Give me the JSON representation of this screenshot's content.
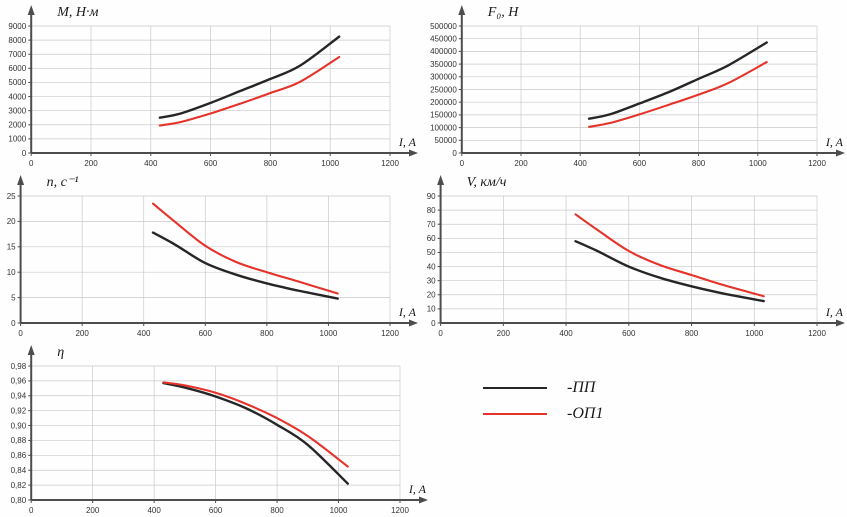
{
  "page": {
    "background": "#fefefe"
  },
  "legend": {
    "items": [
      {
        "name": "ПП",
        "label": "-ПП",
        "color": "#262626"
      },
      {
        "name": "ОП1",
        "label": "-ОП1",
        "color": "#e6332a"
      }
    ]
  },
  "axis": {
    "color": "#4d4d4d",
    "grid_color": "#c9c9c9",
    "tick_color": "#333333"
  },
  "chart_data": [
    {
      "id": "torque",
      "type": "line",
      "title": "M, Н·м",
      "xlabel": "I, A",
      "x": [
        430,
        500,
        600,
        700,
        800,
        900,
        1030
      ],
      "series": [
        {
          "name": "ПП",
          "color": "#262626",
          "values": [
            2500,
            2800,
            3550,
            4400,
            5250,
            6200,
            8250
          ]
        },
        {
          "name": "ОП1",
          "color": "#e6332a",
          "values": [
            1950,
            2200,
            2800,
            3500,
            4250,
            5050,
            6800
          ]
        }
      ],
      "xlim": [
        0,
        1200
      ],
      "xstep": 200,
      "ylim": [
        0,
        9000
      ],
      "ystep": 1000,
      "y_decimals": 0,
      "decimal_comma": false,
      "grid": true
    },
    {
      "id": "force",
      "type": "line",
      "title": "F₀, Н",
      "xlabel": "I, A",
      "x": [
        430,
        500,
        600,
        700,
        800,
        900,
        1030
      ],
      "series": [
        {
          "name": "ПП",
          "color": "#262626",
          "values": [
            135000,
            152000,
            195000,
            240000,
            292000,
            345000,
            435000
          ]
        },
        {
          "name": "ОП1",
          "color": "#e6332a",
          "values": [
            103000,
            118000,
            152000,
            190000,
            230000,
            275000,
            358000
          ]
        }
      ],
      "xlim": [
        0,
        1200
      ],
      "xstep": 200,
      "ylim": [
        0,
        500000
      ],
      "ystep": 50000,
      "y_decimals": 0,
      "decimal_comma": false,
      "grid": true
    },
    {
      "id": "rotation-speed",
      "type": "line",
      "title": "n, c⁻¹",
      "xlabel": "I, A",
      "x": [
        430,
        500,
        600,
        700,
        800,
        900,
        1030
      ],
      "series": [
        {
          "name": "ПП",
          "color": "#262626",
          "values": [
            17.8,
            15.5,
            11.8,
            9.5,
            7.8,
            6.4,
            4.8
          ]
        },
        {
          "name": "ОП1",
          "color": "#e6332a",
          "values": [
            23.5,
            20.0,
            15.2,
            12.0,
            10.0,
            8.2,
            5.8
          ]
        }
      ],
      "xlim": [
        0,
        1200
      ],
      "xstep": 200,
      "ylim": [
        0,
        25
      ],
      "ystep": 5,
      "y_decimals": 0,
      "decimal_comma": false,
      "grid": true
    },
    {
      "id": "velocity",
      "type": "line",
      "title": "V, км/ч",
      "xlabel": "I, A",
      "x": [
        430,
        500,
        600,
        700,
        800,
        900,
        1030
      ],
      "series": [
        {
          "name": "ПП",
          "color": "#262626",
          "values": [
            58,
            51,
            40,
            32,
            26,
            21,
            15.5
          ]
        },
        {
          "name": "ОП1",
          "color": "#e6332a",
          "values": [
            77,
            66,
            51,
            41,
            34,
            27,
            19
          ]
        }
      ],
      "xlim": [
        0,
        1200
      ],
      "xstep": 200,
      "ylim": [
        0,
        90
      ],
      "ystep": 10,
      "y_decimals": 0,
      "decimal_comma": false,
      "grid": true
    },
    {
      "id": "efficiency",
      "type": "line",
      "title": "η",
      "xlabel": "I, A",
      "x": [
        430,
        500,
        600,
        700,
        800,
        900,
        1030
      ],
      "series": [
        {
          "name": "ПП",
          "color": "#262626",
          "values": [
            0.957,
            0.951,
            0.939,
            0.923,
            0.901,
            0.874,
            0.822
          ]
        },
        {
          "name": "ОП1",
          "color": "#e6332a",
          "values": [
            0.958,
            0.954,
            0.944,
            0.929,
            0.91,
            0.886,
            0.845
          ]
        }
      ],
      "xlim": [
        0,
        1200
      ],
      "xstep": 200,
      "ylim": [
        0.8,
        0.98
      ],
      "ystep": 0.02,
      "y_decimals": 2,
      "decimal_comma": true,
      "grid": true
    }
  ]
}
